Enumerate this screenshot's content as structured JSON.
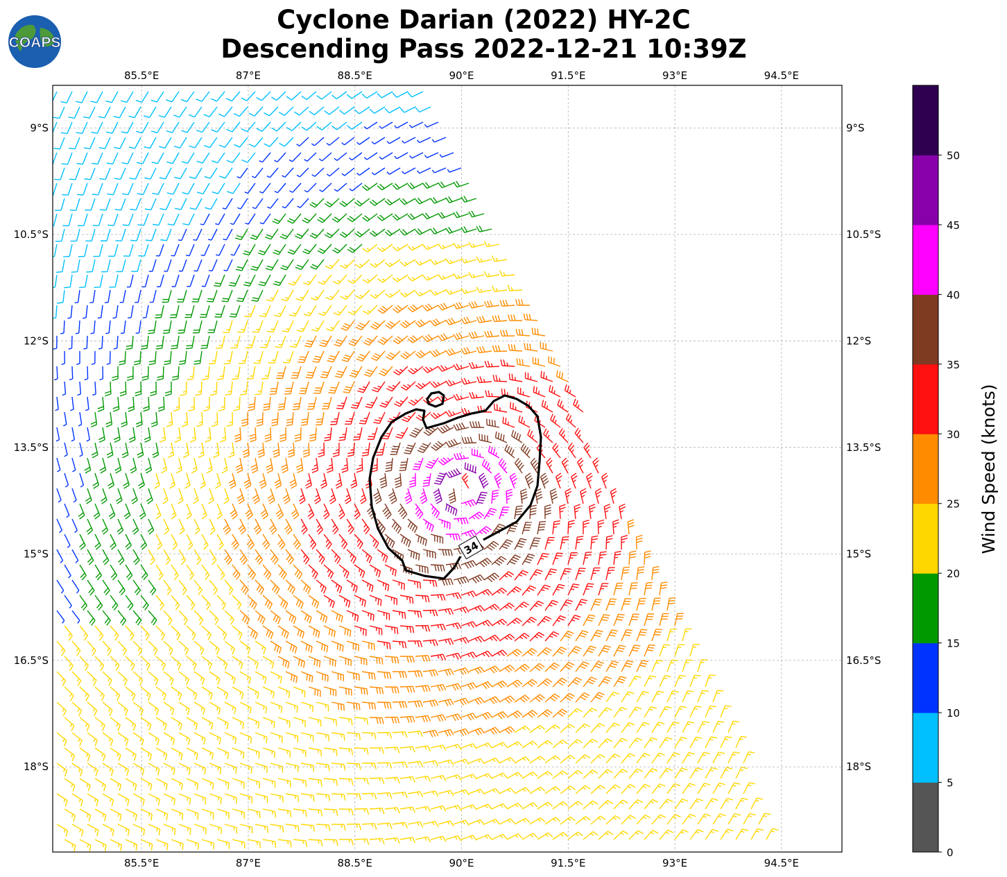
{
  "title_line1": "Cyclone Darian (2022) HY-2C",
  "title_line2": "Descending Pass 2022-12-21 10:39Z",
  "logo_text": "COAPS",
  "lon_ticks": [
    "85.5°E",
    "87°E",
    "88.5°E",
    "90°E",
    "91.5°E",
    "93°E",
    "94.5°E"
  ],
  "lat_ticks": [
    "9°S",
    "10.5°S",
    "12°S",
    "13.5°S",
    "15°S",
    "16.5°S",
    "18°S"
  ],
  "contour_label": "34",
  "colorbar": {
    "label": "Wind Speed (knots)",
    "ticks": [
      "0",
      "5",
      "10",
      "15",
      "20",
      "25",
      "30",
      "35",
      "40",
      "45",
      "50"
    ],
    "colors": [
      "#555555",
      "#00bfff",
      "#0033ff",
      "#009900",
      "#ffd700",
      "#ff8c00",
      "#ff1010",
      "#7f3a22",
      "#ff00ff",
      "#8800aa",
      "#2e004f"
    ]
  },
  "map_extent": {
    "lon_min": 84.25,
    "lon_max": 95.35,
    "lat_min": -19.2,
    "lat_max": -8.4
  },
  "storm_center": {
    "lon": 90.0,
    "lat": -14.1
  }
}
